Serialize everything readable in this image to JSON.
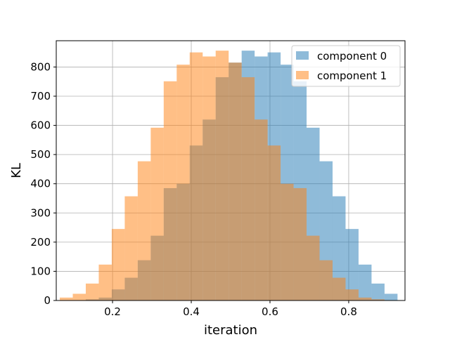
{
  "chart_data": {
    "type": "bar",
    "title": "",
    "xlabel": "iteration",
    "ylabel": "KL",
    "xlim": [
      0.057,
      0.943
    ],
    "ylim": [
      0,
      890
    ],
    "xticks": [
      0.2,
      0.4,
      0.6,
      0.8
    ],
    "yticks": [
      0,
      100,
      200,
      300,
      400,
      500,
      600,
      700,
      800
    ],
    "xtick_labels": [
      "0.2",
      "0.4",
      "0.6",
      "0.8"
    ],
    "ytick_labels": [
      "0",
      "100",
      "200",
      "300",
      "400",
      "500",
      "600",
      "700",
      "800"
    ],
    "grid": true,
    "legend_position": "top-right",
    "series": [
      {
        "name": "component 0",
        "color": "#1f77b4",
        "alpha": 0.5,
        "bin_edges": [
          0.099,
          0.132,
          0.165,
          0.198,
          0.231,
          0.264,
          0.297,
          0.33,
          0.363,
          0.396,
          0.429,
          0.462,
          0.495,
          0.528,
          0.561,
          0.594,
          0.627,
          0.66,
          0.693,
          0.726,
          0.759,
          0.792,
          0.825,
          0.858,
          0.891,
          0.924
        ],
        "counts": [
          0,
          4,
          10,
          38,
          78,
          138,
          222,
          385,
          400,
          531,
          620,
          765,
          815,
          856,
          836,
          850,
          808,
          751,
          592,
          477,
          357,
          245,
          123,
          58,
          23
        ]
      },
      {
        "name": "component 1",
        "color": "#ff7f0e",
        "alpha": 0.5,
        "bin_edges": [
          0.066,
          0.099,
          0.132,
          0.165,
          0.198,
          0.231,
          0.264,
          0.297,
          0.33,
          0.363,
          0.396,
          0.429,
          0.462,
          0.495,
          0.528,
          0.561,
          0.594,
          0.627,
          0.66,
          0.693,
          0.726,
          0.759,
          0.792,
          0.825,
          0.858,
          0.891
        ],
        "counts": [
          10,
          23,
          58,
          123,
          245,
          357,
          477,
          592,
          751,
          808,
          850,
          836,
          856,
          815,
          765,
          620,
          531,
          400,
          385,
          222,
          138,
          78,
          38,
          10,
          4
        ]
      }
    ]
  }
}
